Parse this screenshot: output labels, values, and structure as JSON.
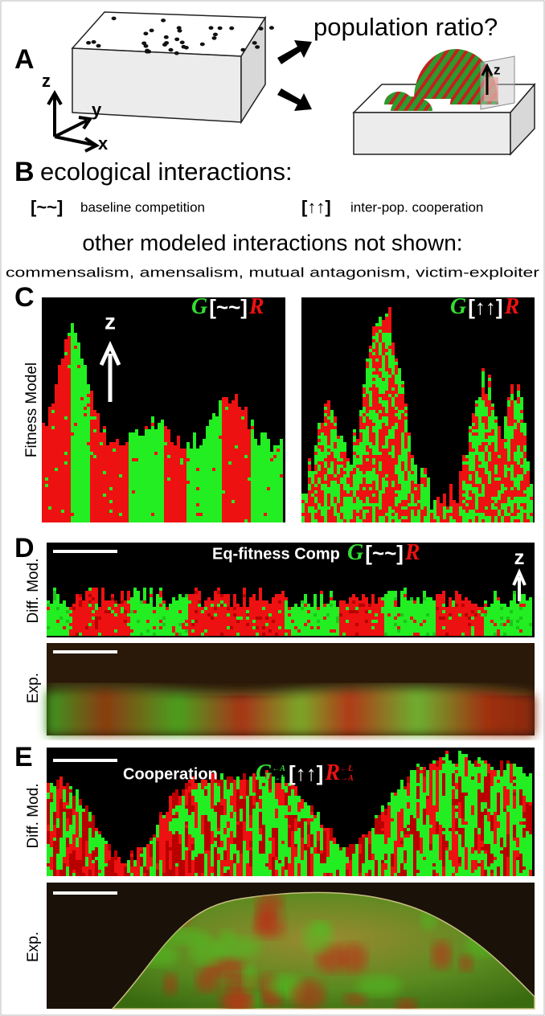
{
  "panel_a": {
    "label": "A",
    "question": "population ratio?",
    "axes": {
      "z": "z",
      "y": "y",
      "x": "x"
    },
    "inset_axis": "z"
  },
  "panel_b": {
    "label": "B",
    "title": "ecological interactions:",
    "items": [
      {
        "symbol": "[~~]",
        "text": "baseline competition"
      },
      {
        "symbol": "[↑↑]",
        "text": "inter-pop. cooperation"
      }
    ],
    "other_title": "other modeled interactions not shown:",
    "other_list": "commensalism, amensalism, mutual antagonism, victim-exploiter"
  },
  "panel_c": {
    "label": "C",
    "row_label": "Fitness Model",
    "axis": "z",
    "left": {
      "g": "G",
      "symbol": "[~~]",
      "r": "R"
    },
    "right": {
      "g": "G",
      "symbol": "[↑↑]",
      "r": "R"
    }
  },
  "panel_d": {
    "label": "D",
    "model_label": "Diff. Mod.",
    "exp_label": "Exp.",
    "title": "Eq-fitness Comp",
    "g": "G",
    "symbol": "[~~]",
    "r": "R",
    "axis": "z"
  },
  "panel_e": {
    "label": "E",
    "model_label": "Diff. Mod.",
    "exp_label": "Exp.",
    "title": "Cooperation",
    "g": "G",
    "g_sup": "←A",
    "g_sub": "→L",
    "symbol": "[↑↑]",
    "r": "R",
    "r_sup": "←L",
    "r_sub": "→A"
  }
}
